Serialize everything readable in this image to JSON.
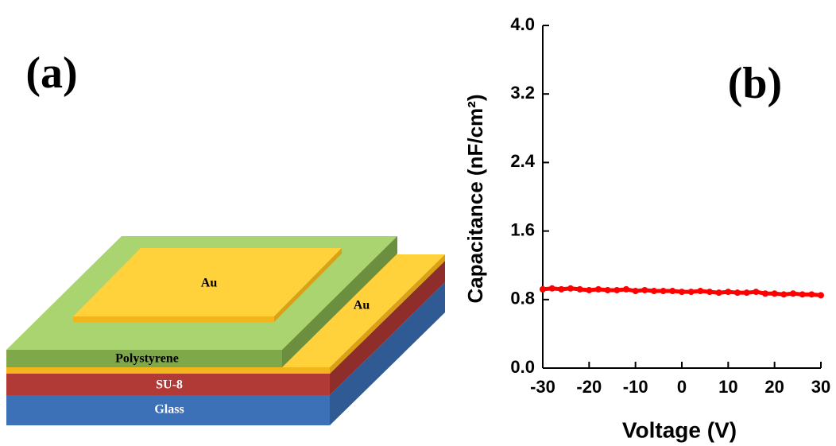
{
  "diagram": {
    "panel_label": "(a)",
    "top_electrode": "Au",
    "bottom_electrode": "Au",
    "dielectric": "Polystyrene",
    "middle_layer": "SU-8",
    "substrate": "Glass"
  },
  "chart_data": {
    "type": "line",
    "panel_label": "(b)",
    "xlabel": "Voltage (V)",
    "ylabel": "Capacitance (nF/cm²)",
    "x": [
      -30,
      -28,
      -26,
      -24,
      -22,
      -20,
      -18,
      -16,
      -14,
      -12,
      -10,
      -8,
      -6,
      -4,
      -2,
      0,
      2,
      4,
      6,
      8,
      10,
      12,
      14,
      16,
      18,
      20,
      22,
      24,
      26,
      28,
      30
    ],
    "series": [
      {
        "color": "#ff0000",
        "values": [
          0.92,
          0.93,
          0.92,
          0.93,
          0.92,
          0.91,
          0.92,
          0.91,
          0.91,
          0.92,
          0.9,
          0.91,
          0.9,
          0.9,
          0.9,
          0.89,
          0.89,
          0.9,
          0.89,
          0.88,
          0.89,
          0.88,
          0.88,
          0.89,
          0.87,
          0.87,
          0.86,
          0.87,
          0.86,
          0.86,
          0.85
        ]
      }
    ],
    "xlim": [
      -30,
      30
    ],
    "ylim": [
      0,
      4
    ],
    "xticks": [
      -30,
      -20,
      -10,
      0,
      10,
      20,
      30
    ],
    "yticks": [
      {
        "value": 0,
        "label": "0.0"
      },
      {
        "value": 0.8,
        "label": "0.8"
      },
      {
        "value": 1.6,
        "label": "1.6"
      },
      {
        "value": 2.4,
        "label": "2.4"
      },
      {
        "value": 3.2,
        "label": "3.2"
      },
      {
        "value": 4,
        "label": "4.0"
      }
    ]
  }
}
